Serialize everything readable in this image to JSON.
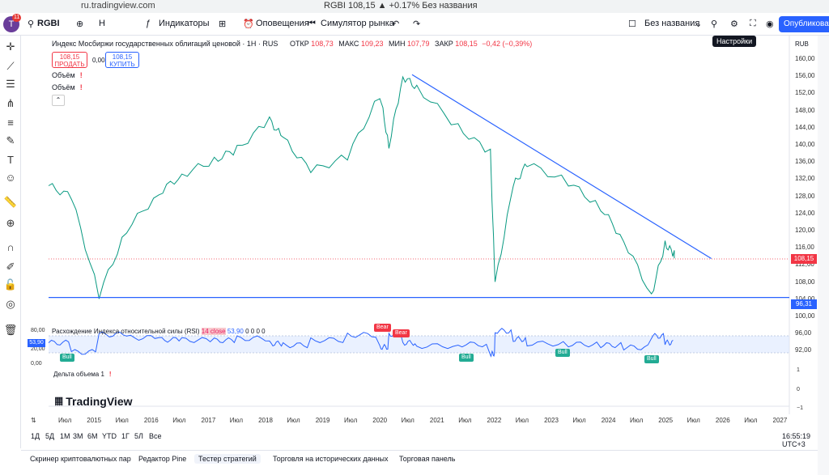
{
  "browser": {
    "url": "ru.tradingview.com",
    "title": "RGBI 108,15 ▲ +0.17% Без названия"
  },
  "toolbar": {
    "avatar_letter": "T",
    "notif_count": "11",
    "symbol": "RGBI",
    "interval": "H",
    "indicators": "Индикаторы",
    "alerts": "Оповещения",
    "replay": "Симулятор рынка",
    "layout_name": "Без названия",
    "publish": "Опубликовать",
    "settings_tooltip": "Настройки"
  },
  "legend": {
    "instrument": "Индекс Мосбиржи государственных облигаций ценовой · 1H · RUS",
    "open_label": "ОТКР",
    "open": "108,73",
    "high_label": "МАКС",
    "high": "109,23",
    "low_label": "МИН",
    "low": "107,79",
    "close_label": "ЗАКР",
    "close": "108,15",
    "change": "−0,42 (−0,39%)"
  },
  "trade": {
    "sell_price": "108,15",
    "sell_label": "ПРОДАТЬ",
    "spread": "0,00",
    "buy_price": "108,15",
    "buy_label": "КУПИТЬ"
  },
  "indicators": {
    "vol1": "Объём",
    "vol2": "Объём",
    "warn": "!"
  },
  "price_axis": {
    "currency": "RUB",
    "labels": [
      "160,00",
      "156,00",
      "152,00",
      "148,00",
      "144,00",
      "140,00",
      "136,00",
      "132,00",
      "128,00",
      "124,00",
      "120,00",
      "116,00",
      "112,00",
      "108,00",
      "104,00",
      "100,00",
      "96,00",
      "92,00"
    ],
    "current": "108,15",
    "support": "96,31"
  },
  "rsi": {
    "title": "Расхождение Индекса относительной силы (RSI)",
    "params": "14 close",
    "value_text": "53,90",
    "extra": "0 0 0 0",
    "current": "53,90",
    "axis": [
      "80,00",
      "20,00",
      "0,00"
    ],
    "signals": {
      "bull": "Bull",
      "bear": "Bear"
    }
  },
  "delta": {
    "label": "Дельта объема",
    "param": "1",
    "axis": [
      "1",
      "0",
      "−1"
    ]
  },
  "logo": "TradingView",
  "time_axis": [
    "Июл",
    "2015",
    "Июл",
    "2016",
    "Июл",
    "2017",
    "Июл",
    "2018",
    "Июл",
    "2019",
    "Июл",
    "2020",
    "Июл",
    "2021",
    "Июл",
    "2022",
    "Июл",
    "2023",
    "Июл",
    "2024",
    "Июл",
    "2025",
    "Июл",
    "2026",
    "Июл",
    "2027"
  ],
  "ranges": [
    "1Д",
    "5Д",
    "1М",
    "3М",
    "6М",
    "YTD",
    "1Г",
    "5Л",
    "Все"
  ],
  "clock": "16:55:19 UTC+3",
  "tabs": [
    "Скринер криптовалютных пар",
    "Редактор Pine",
    "Тестер стратегий",
    "Торговля на исторических данных",
    "Торговая панель"
  ],
  "chart_data": {
    "type": "line",
    "x": [
      "2014-01",
      "2014-06",
      "2014-12",
      "2015-06",
      "2016-01",
      "2016-06",
      "2017-01",
      "2017-06",
      "2018-01",
      "2018-04",
      "2018-10",
      "2019-06",
      "2020-01",
      "2020-03",
      "2020-06",
      "2020-09",
      "2021-06",
      "2022-01",
      "2022-02",
      "2022-06",
      "2022-09",
      "2023-06",
      "2024-01",
      "2024-06",
      "2024-12",
      "2025-03",
      "2025-05"
    ],
    "series": [
      {
        "values": [
          127,
          124,
          97,
          115,
          125,
          130,
          134,
          137,
          145,
          140,
          131,
          135,
          152,
          138,
          157,
          154,
          143,
          136,
          100,
          127,
          133,
          128,
          121,
          112,
          97,
          111,
          108.15
        ]
      }
    ],
    "ylim": [
      90,
      162
    ],
    "trendline": {
      "from": [
        "2020-08",
        157.5
      ],
      "to": [
        "2026-01",
        107
      ]
    },
    "support_level": 96.31,
    "rsi_ylim": [
      0,
      80
    ]
  }
}
